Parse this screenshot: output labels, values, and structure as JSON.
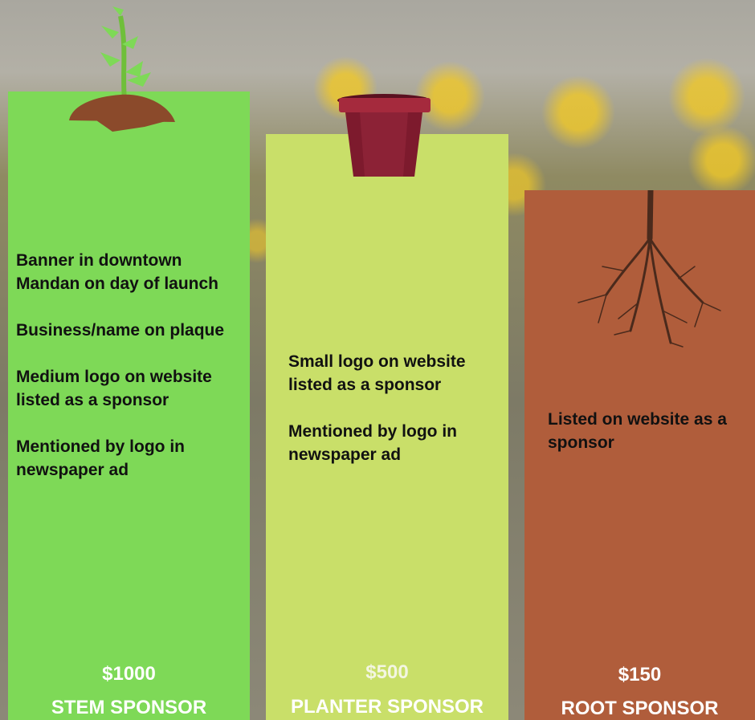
{
  "tiers": [
    {
      "benefits": [
        "Banner in downtown Mandan on day of launch",
        "Business/name on plaque",
        "Medium logo on website listed as a sponsor",
        "Mentioned by logo in newspaper ad"
      ],
      "price": "$1000",
      "name": "STEM SPONSOR"
    },
    {
      "benefits": [
        "Small logo on website listed as a sponsor",
        "Mentioned by logo in newspaper ad"
      ],
      "price": "$500",
      "name": "PLANTER SPONSOR"
    },
    {
      "benefits": [
        "Listed on website as a sponsor"
      ],
      "price": "$150",
      "name": "ROOT SPONSOR"
    }
  ]
}
